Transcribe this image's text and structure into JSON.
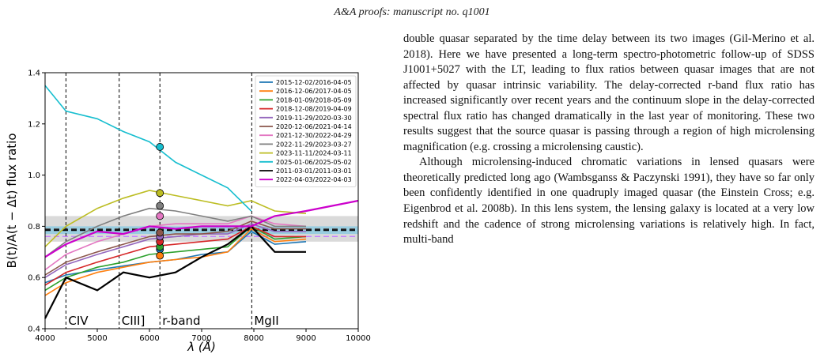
{
  "page": {
    "header": "A&A proofs: manuscript no. q1001"
  },
  "body_text": {
    "paragraph1": "double quasar separated by the time delay between its two images (Gil-Merino et al. 2018). Here we have presented a long-term spectro-photometric follow-up of SDSS J1001+5027 with the LT, leading to flux ratios between quasar images that are not affected by quasar intrinsic variability. The delay-corrected r-band flux ratio has increased significantly over recent years and the continuum slope in the delay-corrected spectral flux ratio has changed dramatically in the last year of monitoring. These two results suggest that the source quasar is passing through a region of high microlensing magnification (e.g. crossing a microlensing caustic).",
    "paragraph2": "Although microlensing-induced chromatic variations in lensed quasars were theoretically predicted long ago (Wambsganss & Paczynski 1991), they have so far only been confidently identified in one quadruply imaged quasar (the Einstein Cross; e.g. Eigenbrod et al. 2008b). In this lens system, the lensing galaxy is located at a very low redshift and the cadence of strong microlensing variations is relatively high. In fact, multi-band"
  },
  "chart_data": {
    "type": "line",
    "xlabel": "λ (Å)",
    "ylabel": "B(t)/A(t − Δt) flux ratio",
    "xlim": [
      4000,
      10000
    ],
    "ylim": [
      0.4,
      1.4
    ],
    "xticks": [
      4000,
      5000,
      6000,
      7000,
      8000,
      9000,
      10000
    ],
    "yticks": [
      0.4,
      0.6,
      0.8,
      1.0,
      1.2,
      1.4
    ],
    "grid": false,
    "legend_position": "top-right",
    "emission_lines": [
      {
        "label": "CIV",
        "x": 4400
      },
      {
        "label": "CIII]",
        "x": 5420
      },
      {
        "label": "r-band",
        "x": 6200
      },
      {
        "label": "MgII",
        "x": 7960
      }
    ],
    "reference_lines": [
      {
        "y": 0.79,
        "band": [
          0.74,
          0.84
        ],
        "color": "#555555",
        "style": "dashed",
        "band_color": "#bbbbbb"
      },
      {
        "y": 0.785,
        "band": [
          0.77,
          0.8
        ],
        "color": "#000000",
        "style": "dashed",
        "band_color": "#7ec8e3"
      },
      {
        "y": 0.76,
        "color": "#c77dff",
        "style": "dashed"
      }
    ],
    "series": [
      {
        "name": "2015-12-02/2016-04-05",
        "color": "#1f77b4",
        "x": [
          4000,
          4400,
          5000,
          5500,
          6000,
          6500,
          7000,
          7500,
          7950,
          8400,
          9000
        ],
        "y": [
          0.58,
          0.61,
          0.63,
          0.645,
          0.66,
          0.67,
          0.69,
          0.7,
          0.78,
          0.73,
          0.74
        ],
        "r_point": 0.71
      },
      {
        "name": "2016-12-06/2017-04-05",
        "color": "#ff7f0e",
        "x": [
          4000,
          4400,
          5000,
          5500,
          6000,
          6500,
          7000,
          7500,
          7950,
          8400,
          9000
        ],
        "y": [
          0.53,
          0.58,
          0.62,
          0.64,
          0.66,
          0.67,
          0.68,
          0.7,
          0.79,
          0.74,
          0.75
        ],
        "r_point": 0.685
      },
      {
        "name": "2018-01-09/2018-05-09",
        "color": "#2ca02c",
        "x": [
          4000,
          4400,
          5000,
          5500,
          6000,
          6500,
          7000,
          7500,
          7950,
          8400,
          9000
        ],
        "y": [
          0.55,
          0.6,
          0.64,
          0.66,
          0.69,
          0.7,
          0.71,
          0.72,
          0.8,
          0.75,
          0.76
        ],
        "r_point": 0.72
      },
      {
        "name": "2018-12-08/2019-04-09",
        "color": "#d62728",
        "x": [
          4000,
          4400,
          5000,
          5500,
          6000,
          6500,
          7000,
          7500,
          7950,
          8400,
          9000
        ],
        "y": [
          0.57,
          0.62,
          0.66,
          0.69,
          0.72,
          0.73,
          0.74,
          0.75,
          0.8,
          0.76,
          0.76
        ],
        "r_point": 0.74
      },
      {
        "name": "2019-11-29/2020-03-30",
        "color": "#9467bd",
        "x": [
          4000,
          4400,
          5000,
          5500,
          6000,
          6500,
          7000,
          7500,
          7950,
          8400,
          9000
        ],
        "y": [
          0.6,
          0.65,
          0.69,
          0.72,
          0.75,
          0.76,
          0.77,
          0.77,
          0.81,
          0.78,
          0.78
        ],
        "r_point": 0.76
      },
      {
        "name": "2020-12-06/2021-04-14",
        "color": "#8c564b",
        "x": [
          4000,
          4400,
          5000,
          5500,
          6000,
          6500,
          7000,
          7500,
          7950,
          8400,
          9000
        ],
        "y": [
          0.61,
          0.66,
          0.7,
          0.73,
          0.76,
          0.77,
          0.77,
          0.78,
          0.82,
          0.79,
          0.79
        ],
        "r_point": 0.775
      },
      {
        "name": "2021-12-30/2022-04-29",
        "color": "#e377c2",
        "x": [
          4000,
          4400,
          5000,
          5500,
          6000,
          6500,
          7000,
          7500,
          7950,
          8400,
          9000
        ],
        "y": [
          0.63,
          0.69,
          0.74,
          0.77,
          0.8,
          0.81,
          0.81,
          0.81,
          0.84,
          0.81,
          0.8
        ],
        "r_point": 0.84
      },
      {
        "name": "2022-11-29/2023-03-27",
        "color": "#7f7f7f",
        "x": [
          4000,
          4400,
          5000,
          5500,
          6000,
          6500,
          7000,
          7500,
          7950,
          8400,
          9000
        ],
        "y": [
          0.68,
          0.74,
          0.8,
          0.84,
          0.87,
          0.86,
          0.84,
          0.82,
          0.84,
          0.8,
          0.8
        ],
        "r_point": 0.88
      },
      {
        "name": "2023-11-11/2024-03-11",
        "color": "#bcbd22",
        "x": [
          4000,
          4400,
          5000,
          5500,
          6000,
          6500,
          7000,
          7500,
          7950,
          8400,
          9000
        ],
        "y": [
          0.72,
          0.8,
          0.87,
          0.91,
          0.94,
          0.92,
          0.9,
          0.88,
          0.9,
          0.86,
          0.85
        ],
        "r_point": 0.93
      },
      {
        "name": "2025-01-06/2025-05-02",
        "color": "#17becf",
        "x": [
          4000,
          4400,
          5000,
          5500,
          6000,
          6500,
          7000,
          7500,
          7950
        ],
        "y": [
          1.35,
          1.25,
          1.22,
          1.17,
          1.13,
          1.05,
          1.0,
          0.95,
          0.86
        ],
        "r_point": 1.11
      },
      {
        "name": "2011-03-01/2011-03-01",
        "color": "#000000",
        "x": [
          4000,
          4400,
          5000,
          5500,
          6000,
          6500,
          7000,
          7500,
          7950,
          8400,
          9000
        ],
        "y": [
          0.44,
          0.6,
          0.55,
          0.62,
          0.6,
          0.62,
          0.68,
          0.73,
          0.8,
          0.7,
          0.7
        ]
      },
      {
        "name": "2022-04-03/2022-04-03",
        "color": "#cc00cc",
        "x": [
          4000,
          4400,
          5000,
          5500,
          6000,
          6500,
          7000,
          7500,
          7950,
          8400,
          9000,
          9500,
          10000
        ],
        "y": [
          0.68,
          0.73,
          0.78,
          0.77,
          0.8,
          0.79,
          0.8,
          0.8,
          0.8,
          0.84,
          0.86,
          0.88,
          0.9
        ]
      }
    ]
  }
}
